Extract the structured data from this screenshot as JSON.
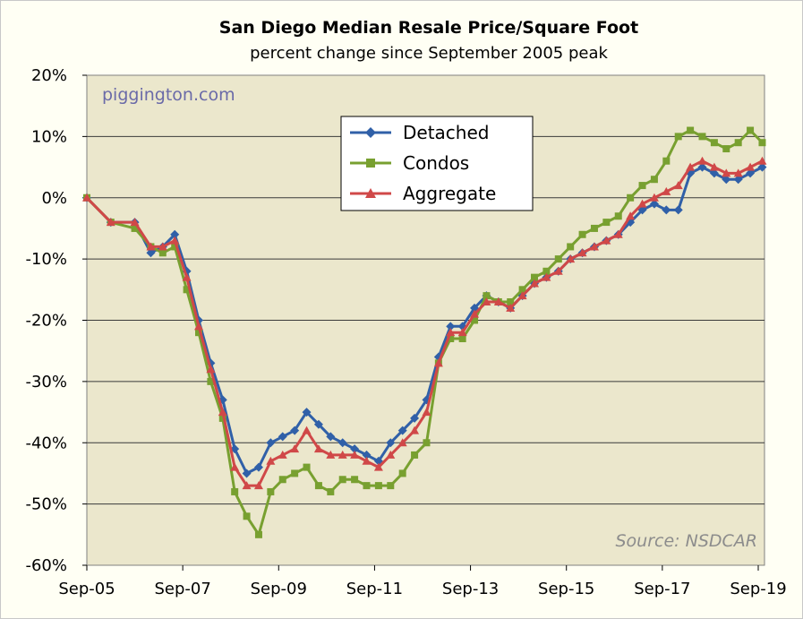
{
  "chart_data": {
    "type": "line",
    "title": "San Diego Median Resale Price/Square Foot",
    "subtitle": "percent change since September 2005 peak",
    "watermark": "piggington.com",
    "source": "Source: NSDCAR",
    "ylim": [
      -60,
      20
    ],
    "y_ticks": [
      20,
      10,
      0,
      -10,
      -20,
      -30,
      -40,
      -50,
      -60
    ],
    "y_tick_labels": [
      "20%",
      "10%",
      "0%",
      "-10%",
      "-20%",
      "-30%",
      "-40%",
      "-50%",
      "-60%"
    ],
    "x_ticks": [
      "2005-09",
      "2007-09",
      "2009-09",
      "2011-09",
      "2013-09",
      "2015-09",
      "2017-09",
      "2019-09"
    ],
    "x_tick_labels": [
      "Sep-05",
      "Sep-07",
      "Sep-09",
      "Sep-11",
      "Sep-13",
      "Sep-15",
      "Sep-17",
      "Sep-19"
    ],
    "grid": "horizontal",
    "legend_position": "top-center",
    "x": [
      "2005-09",
      "2006-03",
      "2006-09",
      "2007-01",
      "2007-04",
      "2007-07",
      "2007-10",
      "2008-01",
      "2008-04",
      "2008-07",
      "2008-10",
      "2009-01",
      "2009-04",
      "2009-07",
      "2009-10",
      "2010-01",
      "2010-04",
      "2010-07",
      "2010-10",
      "2011-01",
      "2011-04",
      "2011-07",
      "2011-10",
      "2012-01",
      "2012-04",
      "2012-07",
      "2012-10",
      "2013-01",
      "2013-04",
      "2013-07",
      "2013-10",
      "2014-01",
      "2014-04",
      "2014-07",
      "2014-10",
      "2015-01",
      "2015-04",
      "2015-07",
      "2015-10",
      "2016-01",
      "2016-04",
      "2016-07",
      "2016-10",
      "2017-01",
      "2017-04",
      "2017-07",
      "2017-10",
      "2018-01",
      "2018-04",
      "2018-07",
      "2018-10",
      "2019-01",
      "2019-04",
      "2019-07",
      "2019-10"
    ],
    "series": [
      {
        "name": "Detached",
        "color": "#3060a8",
        "marker": "diamond",
        "values": [
          0,
          -4,
          -4,
          -9,
          -8,
          -6,
          -12,
          -20,
          -27,
          -33,
          -41,
          -45,
          -44,
          -40,
          -39,
          -38,
          -35,
          -37,
          -39,
          -40,
          -41,
          -42,
          -43,
          -40,
          -38,
          -36,
          -33,
          -26,
          -21,
          -21,
          -18,
          -16,
          -17,
          -18,
          -16,
          -14,
          -13,
          -12,
          -10,
          -9,
          -8,
          -7,
          -6,
          -4,
          -2,
          -1,
          -2,
          -2,
          4,
          5,
          4,
          3,
          3,
          4,
          5
        ]
      },
      {
        "name": "Condos",
        "color": "#78a030",
        "marker": "square",
        "values": [
          0,
          -4,
          -5,
          -8,
          -9,
          -8,
          -15,
          -22,
          -30,
          -36,
          -48,
          -52,
          -55,
          -48,
          -46,
          -45,
          -44,
          -47,
          -48,
          -46,
          -46,
          -47,
          -47,
          -47,
          -45,
          -42,
          -40,
          -27,
          -23,
          -23,
          -20,
          -16,
          -17,
          -17,
          -15,
          -13,
          -12,
          -10,
          -8,
          -6,
          -5,
          -4,
          -3,
          0,
          2,
          3,
          6,
          10,
          11,
          10,
          9,
          8,
          9,
          11,
          9
        ]
      },
      {
        "name": "Aggregate",
        "color": "#d04848",
        "marker": "triangle",
        "values": [
          0,
          -4,
          -4,
          -8,
          -8,
          -7,
          -13,
          -21,
          -28,
          -35,
          -44,
          -47,
          -47,
          -43,
          -42,
          -41,
          -38,
          -41,
          -42,
          -42,
          -42,
          -43,
          -44,
          -42,
          -40,
          -38,
          -35,
          -27,
          -22,
          -22,
          -19,
          -17,
          -17,
          -18,
          -16,
          -14,
          -13,
          -12,
          -10,
          -9,
          -8,
          -7,
          -6,
          -3,
          -1,
          0,
          1,
          2,
          5,
          6,
          5,
          4,
          4,
          5,
          6
        ]
      }
    ]
  }
}
